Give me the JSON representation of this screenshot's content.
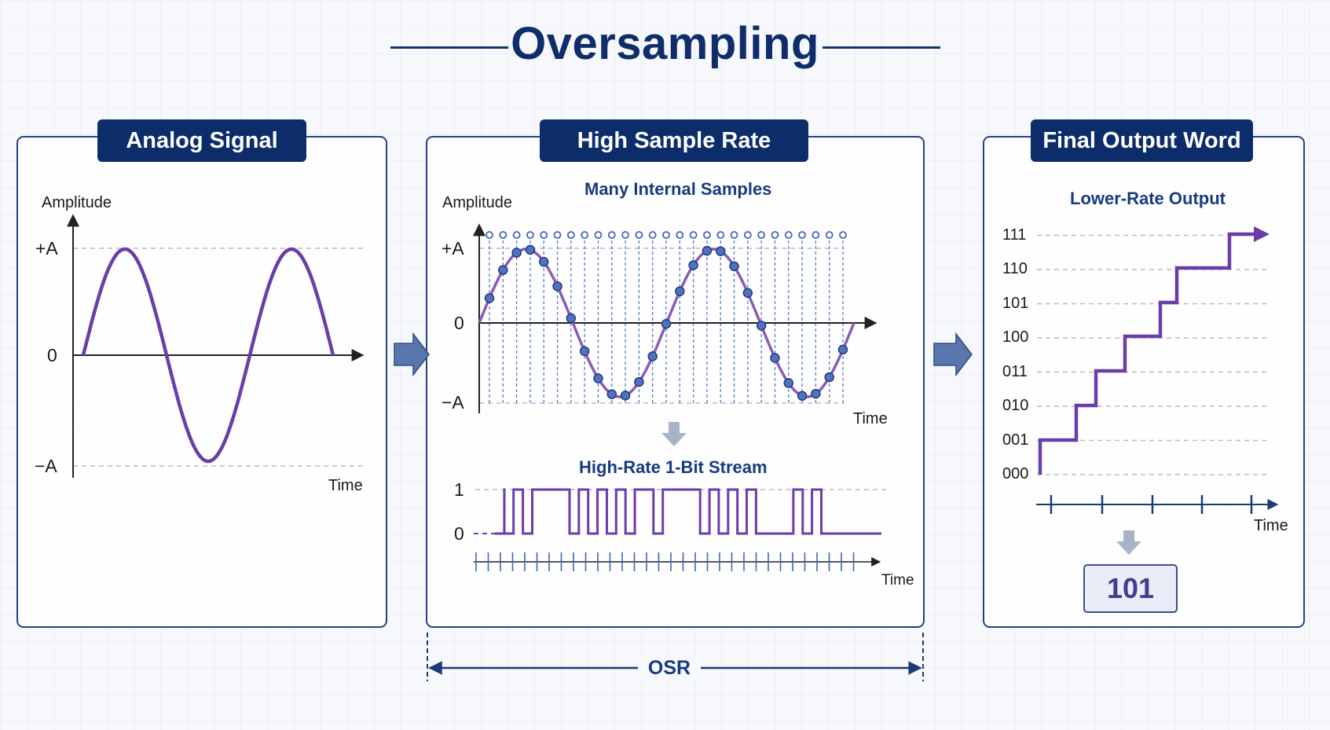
{
  "title": "Oversampling",
  "panels": {
    "analog": {
      "header": "Analog Signal",
      "ylabel": "Amplitude",
      "xlabel": "Time",
      "yticks": {
        "pos": "+A",
        "zero": "0",
        "neg": "−A"
      }
    },
    "high_rate": {
      "header": "High Sample Rate",
      "subtitle": "Many Internal Samples",
      "ylabel": "Amplitude",
      "xlabel": "Time",
      "yticks": {
        "pos": "+A",
        "zero": "0",
        "neg": "−A"
      },
      "stream_title": "High-Rate 1-Bit Stream",
      "stream_levels": {
        "one": "1",
        "zero": "0"
      },
      "stream_xlabel": "Time",
      "bits": [
        1,
        0,
        1,
        0,
        1,
        1,
        1,
        1,
        0,
        1,
        0,
        1,
        0,
        1,
        0,
        1,
        1,
        0,
        1,
        1,
        1,
        1,
        0,
        1,
        0,
        1,
        0,
        1,
        0,
        0,
        0,
        0,
        1,
        0,
        1,
        0,
        0,
        0,
        0
      ]
    },
    "final": {
      "header": "Final Output Word",
      "subtitle": "Lower-Rate Output",
      "levels": [
        "000",
        "001",
        "010",
        "011",
        "100",
        "101",
        "110",
        "111"
      ],
      "xlabel": "Time",
      "output_word": "101"
    }
  },
  "osr_label": "OSR",
  "colors": {
    "navy": "#0d2c6a",
    "signal": "#6a3ea8",
    "sample_dot": "#3f66b5"
  },
  "icons": [
    "right-arrow-icon",
    "down-arrow-icon"
  ]
}
